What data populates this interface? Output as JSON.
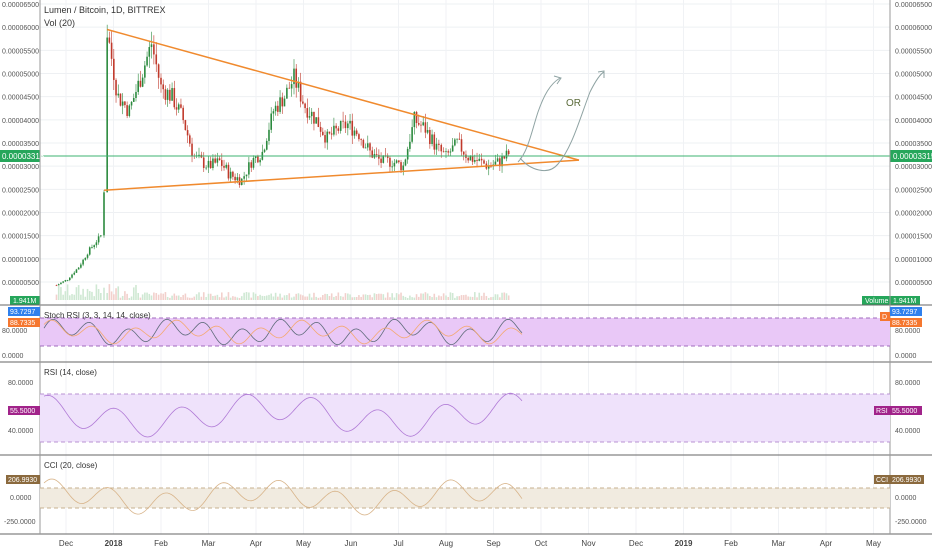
{
  "header": {
    "symbol_line": "Lumen / Bitcoin, 1D, BITTREX",
    "vol_label": "Vol (20)"
  },
  "price_axis": {
    "ticks": [
      "0.00006500",
      "0.00006000",
      "0.00005500",
      "0.00005000",
      "0.00004500",
      "0.00004000",
      "0.00003500",
      "0.00003000",
      "0.00002500",
      "0.00002000",
      "0.00001500",
      "0.00001000",
      "0.00000500"
    ],
    "tick_values": [
      6500,
      6000,
      5500,
      5000,
      4500,
      4000,
      3500,
      3000,
      2500,
      2000,
      1500,
      1000,
      500
    ],
    "last_price": "0.00003315",
    "last_price_value": 3315,
    "volume_badge_left": "1.941M",
    "volume_badge_right": "1.941M",
    "volume_badge_word": "Volume"
  },
  "annotation": {
    "or_text": "OR"
  },
  "stoch_rsi": {
    "label": "Stoch RSI (3, 3, 14, 14, close)",
    "badge_k": "93.7297",
    "badge_d": "88.7335",
    "badge_letter": "D",
    "ticks": [
      "80.0000",
      "0.0000"
    ]
  },
  "rsi": {
    "label": "RSI (14, close)",
    "badge": "55.5000",
    "badge_letter": "RSI",
    "ticks": [
      "80.0000",
      "40.0000"
    ]
  },
  "cci": {
    "label": "CCI (20, close)",
    "badge": "206.9930",
    "badge_letter": "CCI",
    "ticks": [
      "250.0000",
      "0.0000",
      "-250.0000"
    ]
  },
  "time_axis": [
    "Dec",
    "2018",
    "Feb",
    "Mar",
    "Apr",
    "May",
    "Jun",
    "Jul",
    "Aug",
    "Sep",
    "Oct",
    "Nov",
    "Dec",
    "2019",
    "Feb",
    "Mar",
    "Apr",
    "May"
  ],
  "colors": {
    "up": "#2b8a3e",
    "down": "#c0392b",
    "trendline": "#f08a2e",
    "price_line": "#3cb371",
    "stoch_fill": "#e9c8f7",
    "rsi_fill": "#efe2fb",
    "cci_fill": "#f1ebe0",
    "cci_line": "#d8b48a",
    "rsi_line": "#b07ad6",
    "badge_green": "#26a65b",
    "badge_blue": "#2f80ed",
    "badge_orange": "#f5772f",
    "badge_purple": "#a1238a",
    "badge_brown": "#8b6a3e"
  },
  "chart_data": {
    "type": "candlestick",
    "title": "Lumen / Bitcoin, 1D, BITTREX",
    "units": "satoshi (x 1e-8 BTC)",
    "ylim": [
      0,
      6700
    ],
    "close_path": [
      {
        "d": "Dec 1",
        "c": 430
      },
      {
        "d": "Dec 8",
        "c": 560
      },
      {
        "d": "Dec 15",
        "c": 820
      },
      {
        "d": "Dec 22",
        "c": 1200
      },
      {
        "d": "Dec 29",
        "c": 1500
      },
      {
        "d": "Jan 1",
        "c": 2500
      },
      {
        "d": "Jan 3",
        "c": 5900
      },
      {
        "d": "Jan 10",
        "c": 4500
      },
      {
        "d": "Jan 17",
        "c": 4200
      },
      {
        "d": "Jan 24",
        "c": 4900
      },
      {
        "d": "Jan 31",
        "c": 5650
      },
      {
        "d": "Feb 7",
        "c": 4700
      },
      {
        "d": "Feb 14",
        "c": 4500
      },
      {
        "d": "Feb 21",
        "c": 4000
      },
      {
        "d": "Feb 28",
        "c": 3200
      },
      {
        "d": "Mar 7",
        "c": 3000
      },
      {
        "d": "Mar 14",
        "c": 3100
      },
      {
        "d": "Mar 21",
        "c": 2800
      },
      {
        "d": "Mar 28",
        "c": 2700
      },
      {
        "d": "Apr 4",
        "c": 3100
      },
      {
        "d": "Apr 11",
        "c": 3300
      },
      {
        "d": "Apr 18",
        "c": 4200
      },
      {
        "d": "Apr 25",
        "c": 4500
      },
      {
        "d": "May 1",
        "c": 4900
      },
      {
        "d": "May 8",
        "c": 4300
      },
      {
        "d": "May 15",
        "c": 4000
      },
      {
        "d": "May 22",
        "c": 3600
      },
      {
        "d": "May 29",
        "c": 3800
      },
      {
        "d": "Jun 5",
        "c": 3900
      },
      {
        "d": "Jun 12",
        "c": 3700
      },
      {
        "d": "Jun 19",
        "c": 3300
      },
      {
        "d": "Jun 26",
        "c": 3100
      },
      {
        "d": "Jul 3",
        "c": 3100
      },
      {
        "d": "Jul 10",
        "c": 3000
      },
      {
        "d": "Jul 17",
        "c": 4000
      },
      {
        "d": "Jul 24",
        "c": 3800
      },
      {
        "d": "Jul 31",
        "c": 3400
      },
      {
        "d": "Aug 7",
        "c": 3200
      },
      {
        "d": "Aug 14",
        "c": 3500
      },
      {
        "d": "Aug 21",
        "c": 3200
      },
      {
        "d": "Aug 28",
        "c": 3100
      },
      {
        "d": "Sep 4",
        "c": 3000
      },
      {
        "d": "Sep 11",
        "c": 3100
      },
      {
        "d": "Sep 18",
        "c": 3315
      }
    ],
    "trendlines": [
      {
        "name": "upper",
        "from": {
          "d": "Jan 3",
          "v": 5950
        },
        "to": {
          "d": "Nov 1",
          "v": 3130
        }
      },
      {
        "name": "lower",
        "from": {
          "d": "Jan 1",
          "v": 2480
        },
        "to": {
          "d": "Nov 1",
          "v": 3130
        }
      }
    ],
    "last_close": 3315
  }
}
